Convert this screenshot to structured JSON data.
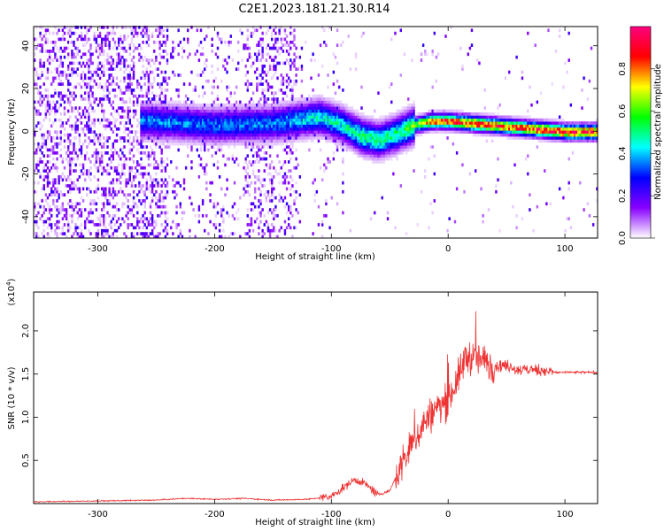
{
  "figure": {
    "title": "C2E1.2023.181.21.30.R14"
  },
  "chart_data": [
    {
      "type": "heatmap",
      "title": "C2E1.2023.181.21.30.R14",
      "xlabel": "Height of straight line (km)",
      "ylabel": "Frequency (Hz)",
      "xlim": [
        -355,
        128
      ],
      "ylim": [
        -50,
        49
      ],
      "x_ticks": [
        -300,
        -200,
        -100,
        0,
        100
      ],
      "x_tick_labels": [
        "-300",
        "-200",
        "-100",
        "0",
        "100"
      ],
      "y_ticks": [
        -40,
        -20,
        0,
        20,
        40
      ],
      "y_tick_labels": [
        "-40",
        "-20",
        "0",
        "20",
        "40"
      ],
      "colorbar": {
        "label": "Normalized spectral amplitude",
        "range": [
          0,
          1
        ],
        "ticks": [
          0.0,
          0.2,
          0.4,
          0.6,
          0.8
        ],
        "tick_labels": [
          "0.0",
          "0.2",
          "0.4",
          "0.6",
          "0.8"
        ],
        "colormap": [
          "#ffffff",
          "#8800ff",
          "#0000ff",
          "#00ffff",
          "#00ff00",
          "#ffff00",
          "#ff0000",
          "#ff0080"
        ]
      },
      "ridge": {
        "description_points_x": [
          -255,
          -200,
          -150,
          -110,
          -90,
          -75,
          -60,
          -45,
          -30,
          -15,
          0,
          20,
          40,
          60,
          80,
          100,
          128
        ],
        "frequency_hz": [
          4,
          2,
          3,
          6,
          2,
          -3,
          -5,
          -2,
          2,
          4,
          4,
          3,
          2,
          1,
          0,
          -1,
          -1
        ],
        "amplitude": [
          0.35,
          0.35,
          0.35,
          0.45,
          0.45,
          0.5,
          0.5,
          0.5,
          0.6,
          0.8,
          0.85,
          0.85,
          0.85,
          0.85,
          0.9,
          0.9,
          0.9
        ]
      },
      "background_noise_regions": [
        {
          "x_range": [
            -355,
            -240
          ],
          "strength": 0.25
        },
        {
          "x_range": [
            -175,
            -130
          ],
          "strength": 0.2
        },
        {
          "x_range": [
            -240,
            -175
          ],
          "strength": 0.08
        },
        {
          "x_range": [
            -130,
            -90
          ],
          "strength": 0.04
        }
      ]
    },
    {
      "type": "line",
      "xlabel": "Height of straight line (km)",
      "ylabel": "SNR (10 * v/v)",
      "scale_note": "(x10",
      "scale_exponent": "4",
      "scale_note_close": ")",
      "xlim": [
        -355,
        128
      ],
      "ylim": [
        0,
        2.45
      ],
      "x_ticks": [
        -300,
        -200,
        -100,
        0,
        100
      ],
      "x_tick_labels": [
        "-300",
        "-200",
        "-100",
        "0",
        "100"
      ],
      "y_ticks": [
        0.5,
        1.0,
        1.5,
        2.0
      ],
      "y_tick_labels": [
        "0.5",
        "1.0",
        "1.5",
        "2.0"
      ],
      "color": "#ee3333",
      "series": [
        {
          "x": [
            -355,
            -300,
            -250,
            -225,
            -200,
            -175,
            -150,
            -120,
            -100,
            -90,
            -80,
            -70,
            -60,
            -50,
            -40,
            -30,
            -20,
            -10,
            0,
            10,
            15,
            20,
            30,
            40,
            50,
            60,
            70,
            80,
            90,
            100,
            128
          ],
          "y": [
            0.02,
            0.03,
            0.04,
            0.06,
            0.05,
            0.06,
            0.04,
            0.05,
            0.08,
            0.18,
            0.28,
            0.22,
            0.1,
            0.15,
            0.45,
            0.7,
            0.95,
            1.1,
            1.2,
            1.5,
            1.7,
            1.7,
            1.65,
            1.6,
            1.6,
            1.55,
            1.55,
            1.55,
            1.52,
            1.52,
            1.52
          ]
        }
      ]
    }
  ]
}
